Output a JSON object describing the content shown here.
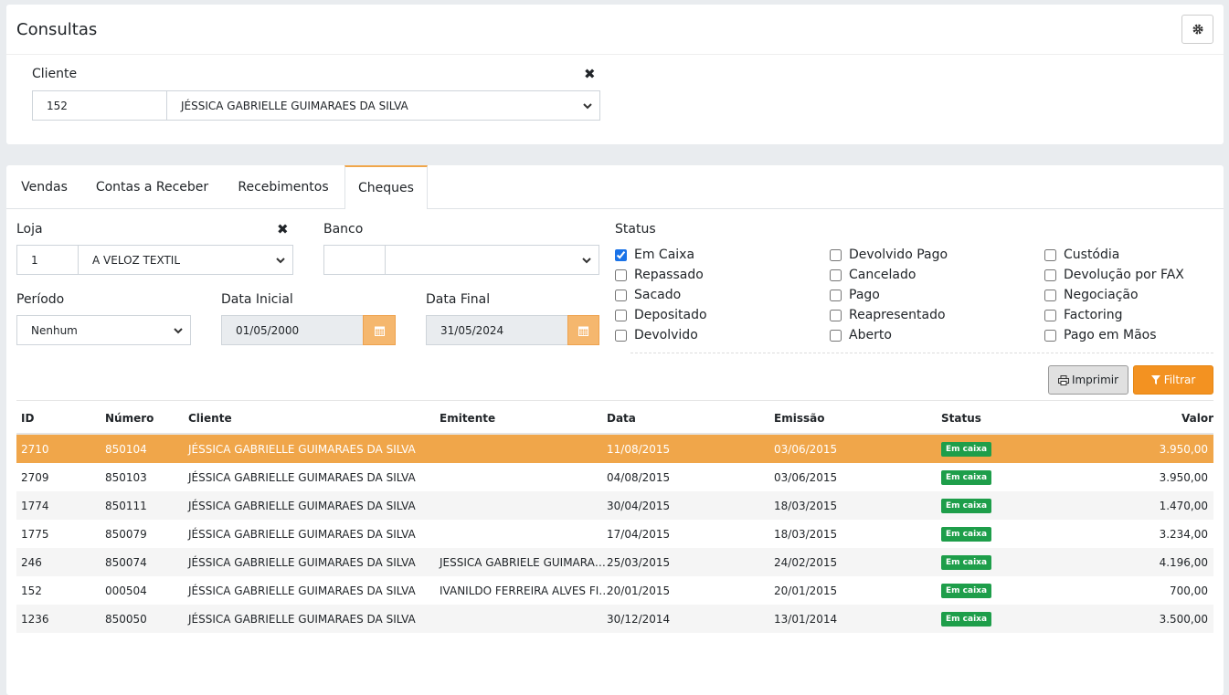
{
  "header": {
    "title": "Consultas"
  },
  "client": {
    "label": "Cliente",
    "code": "152",
    "name": "JÉSSICA GABRIELLE GUIMARAES DA SILVA"
  },
  "tabs": [
    "Vendas",
    "Contas a Receber",
    "Recebimentos",
    "Cheques"
  ],
  "filters": {
    "store": {
      "label": "Loja",
      "code": "1",
      "name": "A VELOZ TEXTIL"
    },
    "bank": {
      "label": "Banco"
    },
    "period": {
      "label": "Período",
      "value": "Nenhum"
    },
    "start_date": {
      "label": "Data Inicial",
      "value": "01/05/2000"
    },
    "end_date": {
      "label": "Data Final",
      "value": "31/05/2024"
    }
  },
  "status": {
    "label": "Status",
    "options": [
      {
        "label": "Em Caixa",
        "checked": true
      },
      {
        "label": "Repassado",
        "checked": false
      },
      {
        "label": "Sacado",
        "checked": false
      },
      {
        "label": "Depositado",
        "checked": false
      },
      {
        "label": "Devolvido",
        "checked": false
      },
      {
        "label": "Devolvido Pago",
        "checked": false
      },
      {
        "label": "Cancelado",
        "checked": false
      },
      {
        "label": "Pago",
        "checked": false
      },
      {
        "label": "Reapresentado",
        "checked": false
      },
      {
        "label": "Aberto",
        "checked": false
      },
      {
        "label": "Custódia",
        "checked": false
      },
      {
        "label": "Devolução por FAX",
        "checked": false
      },
      {
        "label": "Negociação",
        "checked": false
      },
      {
        "label": "Factoring",
        "checked": false
      },
      {
        "label": "Pago em Mãos",
        "checked": false
      }
    ]
  },
  "buttons": {
    "print": "Imprimir",
    "filter": "Filtrar"
  },
  "table": {
    "columns": [
      "ID",
      "Número",
      "Cliente",
      "Emitente",
      "Data",
      "Emissão",
      "Status",
      "Valor"
    ],
    "rows": [
      [
        "2710",
        "850104",
        "JÉSSICA GABRIELLE GUIMARAES DA SILVA",
        null,
        "11/08/2015",
        "03/06/2015",
        "Em caixa",
        "3.950,00"
      ],
      [
        "2709",
        "850103",
        "JÉSSICA GABRIELLE GUIMARAES DA SILVA",
        null,
        "04/08/2015",
        "03/06/2015",
        "Em caixa",
        "3.950,00"
      ],
      [
        "1774",
        "850111",
        "JÉSSICA GABRIELLE GUIMARAES DA SILVA",
        null,
        "30/04/2015",
        "18/03/2015",
        "Em caixa",
        "1.470,00"
      ],
      [
        "1775",
        "850079",
        "JÉSSICA GABRIELLE GUIMARAES DA SILVA",
        null,
        "17/04/2015",
        "18/03/2015",
        "Em caixa",
        "3.234,00"
      ],
      [
        "246",
        "850074",
        "JÉSSICA GABRIELLE GUIMARAES DA SILVA",
        "JESSICA GABRIELE GUIMARA…",
        "25/03/2015",
        "24/02/2015",
        "Em caixa",
        "4.196,00"
      ],
      [
        "152",
        "000504",
        "JÉSSICA GABRIELLE GUIMARAES DA SILVA",
        "IVANILDO FERREIRA ALVES FI…",
        "20/01/2015",
        "20/01/2015",
        "Em caixa",
        "700,00"
      ],
      [
        "1236",
        "850050",
        "JÉSSICA GABRIELLE GUIMARAES DA SILVA",
        null,
        "30/12/2014",
        "13/01/2014",
        "Em caixa",
        "3.500,00"
      ]
    ]
  }
}
